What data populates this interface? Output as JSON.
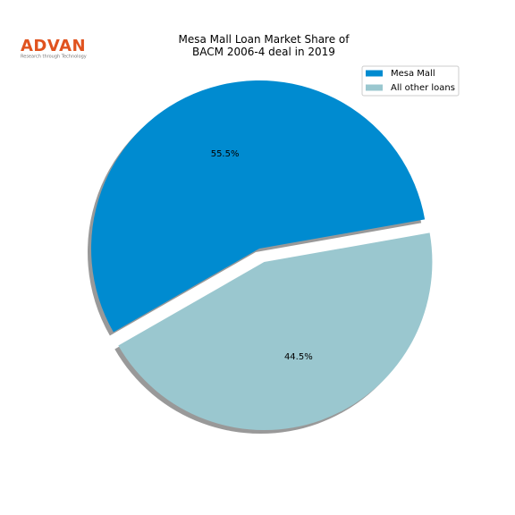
{
  "logo": {
    "name": "ADVAN",
    "tagline": "Research through Technology"
  },
  "chart_data": {
    "type": "pie",
    "title": "Mesa Mall Loan Market Share of\nBACM 2006-4 deal in 2019",
    "categories": [
      "Mesa Mall",
      "All other loans"
    ],
    "values": [
      55.5,
      44.5
    ],
    "value_labels": [
      "55.5%",
      "44.5%"
    ],
    "colors": [
      "#008bd0",
      "#9ac7cf"
    ],
    "legend": "upper right",
    "shadow": true
  }
}
